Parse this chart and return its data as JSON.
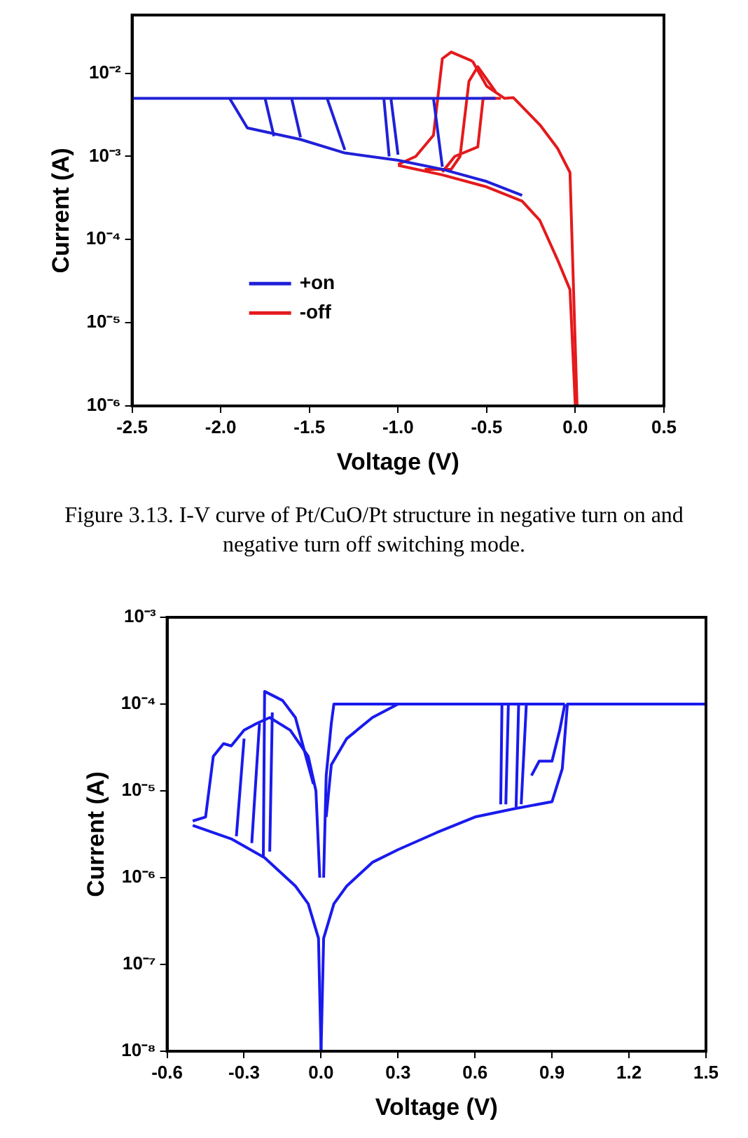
{
  "chart_data": [
    {
      "type": "line",
      "xlabel": "Voltage (V)",
      "ylabel": "Current (A)",
      "log": "y",
      "grid": false,
      "legend": "bottom left",
      "marker": "none",
      "line_style": "solid",
      "xlim": [
        -2.5,
        0.5
      ],
      "xticks": [
        -2.5,
        {
          "value": -2,
          "label": "-2.0"
        },
        -1.5,
        {
          "value": -1,
          "label": "-1.0"
        },
        -0.5,
        {
          "value": 0,
          "label": "0.0"
        },
        0.5
      ],
      "ylim": [
        1e-06,
        0.05
      ],
      "yticks": [
        {
          "value": 1e-06,
          "label": "10⁻⁶"
        },
        {
          "value": 1e-05,
          "label": "10⁻⁵"
        },
        {
          "value": 0.0001,
          "label": "10⁻⁴"
        },
        {
          "value": 0.001,
          "label": "10⁻³"
        },
        {
          "value": 0.01,
          "label": "10⁻²"
        }
      ],
      "annotations": [
        "Figure 3.13. I-V curve of Pt/CuO/Pt structure in negative turn on and negative turn off switching mode."
      ],
      "series": [
        {
          "name": "+on",
          "color": "#2020d8",
          "x": [
            -2.5,
            -0.45
          ],
          "values": [
            0.005,
            0.005
          ]
        },
        {
          "color": "#2020d8",
          "x": [
            -1.95,
            -1.85,
            -1.55,
            -1.3,
            -1.0,
            -0.75,
            -0.5,
            -0.3
          ],
          "values": [
            0.005,
            0.0022,
            0.0016,
            0.0011,
            0.0009,
            0.0007,
            0.0005,
            0.00034
          ]
        },
        {
          "color": "#2020d8",
          "x": [
            -1.75,
            -1.7,
            null,
            -1.6,
            -1.55,
            null,
            -1.4,
            -1.3,
            null,
            -1.08,
            -1.05,
            null,
            -1.04,
            -1.0,
            null,
            -0.8,
            -0.75
          ],
          "values": [
            0.005,
            0.00175,
            null,
            0.005,
            0.0017,
            null,
            0.005,
            0.0012,
            null,
            0.005,
            0.001,
            null,
            0.005,
            0.00105,
            null,
            0.005,
            0.00075
          ]
        },
        {
          "name": "-off",
          "color": "#e41a1c",
          "x": [
            -1.0,
            -0.75,
            -0.5,
            -0.3,
            -0.2,
            -0.1,
            -0.03,
            0
          ],
          "values": [
            0.00078,
            0.0006,
            0.00043,
            0.00029,
            0.00017,
            5.7e-05,
            2.5e-05,
            1e-06
          ]
        },
        {
          "color": "#e41a1c",
          "x": [
            -0.58,
            -0.5,
            -0.4,
            -0.35,
            -0.2,
            -0.1,
            -0.03,
            0.01
          ],
          "values": [
            0.014,
            0.007,
            0.005,
            0.0051,
            0.0024,
            0.00125,
            0.00064,
            1e-06
          ]
        },
        {
          "color": "#e41a1c",
          "x": [
            -1.0,
            -0.9,
            -0.8,
            -0.75,
            -0.7,
            -0.58
          ],
          "values": [
            0.0008,
            0.001,
            0.0018,
            0.015,
            0.018,
            0.014
          ]
        },
        {
          "color": "#e41a1c",
          "x": [
            -0.85,
            -0.7,
            -0.65,
            -0.6,
            -0.55,
            -0.45
          ],
          "values": [
            0.0007,
            0.0007,
            0.001,
            0.008,
            0.012,
            0.006
          ]
        },
        {
          "color": "#e41a1c",
          "x": [
            -0.75,
            -0.68,
            -0.55,
            -0.52,
            -0.42
          ],
          "values": [
            0.00065,
            0.001,
            0.0013,
            0.005,
            0.005
          ]
        }
      ]
    },
    {
      "type": "line",
      "xlabel": "Voltage (V)",
      "ylabel": "Current (A)",
      "log": "y",
      "grid": false,
      "legend": false,
      "marker": "none",
      "line_style": "solid",
      "xlim": [
        -0.6,
        1.5
      ],
      "xticks": [
        -0.6,
        -0.3,
        {
          "value": 0,
          "label": "0.0"
        },
        0.3,
        0.6,
        0.9,
        1.2,
        1.5
      ],
      "ylim": [
        1e-08,
        0.001
      ],
      "yticks": [
        {
          "value": 1e-08,
          "label": "10⁻⁸"
        },
        {
          "value": 1e-07,
          "label": "10⁻⁷"
        },
        {
          "value": 1e-06,
          "label": "10⁻⁶"
        },
        {
          "value": 1e-05,
          "label": "10⁻⁵"
        },
        {
          "value": 0.0001,
          "label": "10⁻⁴"
        },
        {
          "value": 0.001,
          "label": "10⁻³"
        }
      ],
      "series": [
        {
          "color": "#1a1aee",
          "x": [
            0,
            0.01,
            0.05,
            0.1,
            0.2,
            0.3,
            0.45,
            0.6,
            0.75,
            0.9,
            0.94,
            0.96,
            1.5
          ],
          "values": [
            1e-08,
            2e-07,
            5e-07,
            8e-07,
            1.5e-06,
            2.1e-06,
            3.3e-06,
            5e-06,
            6.2e-06,
            7.5e-06,
            1.8e-05,
            0.0001,
            0.0001
          ]
        },
        {
          "color": "#1a1aee",
          "x": [
            0.01,
            0.02,
            0.04,
            0.05,
            0.95
          ],
          "values": [
            1e-06,
            1.5e-05,
            6e-05,
            0.0001,
            0.0001
          ]
        },
        {
          "color": "#1a1aee",
          "x": [
            0.02,
            0.04,
            0.1,
            0.2,
            0.3
          ],
          "values": [
            5e-06,
            2e-05,
            4e-05,
            7e-05,
            0.0001
          ]
        },
        {
          "color": "#1a1aee",
          "x": [
            -0.5,
            -0.35,
            -0.22,
            -0.1,
            -0.05,
            -0.01,
            0
          ],
          "values": [
            4e-06,
            2.8e-06,
            1.7e-06,
            8e-07,
            5e-07,
            2e-07,
            1e-08
          ]
        },
        {
          "color": "#1a1aee",
          "x": [
            -0.5,
            -0.45,
            -0.42,
            -0.38,
            -0.35,
            -0.3,
            -0.25,
            -0.2,
            -0.12,
            -0.05,
            -0.02,
            -0.005
          ],
          "values": [
            4.5e-06,
            5e-06,
            2.5e-05,
            3.5e-05,
            3.3e-05,
            5e-05,
            6e-05,
            7e-05,
            5e-05,
            2.5e-05,
            1e-05,
            1e-06
          ]
        },
        {
          "color": "#1a1aee",
          "x": [
            -0.225,
            -0.22,
            -0.15,
            -0.1,
            -0.03
          ],
          "values": [
            1.7e-06,
            0.00014,
            0.00011,
            7e-05,
            1.2e-05
          ]
        },
        {
          "color": "#1a1aee",
          "x": [
            -0.33,
            -0.3,
            null,
            -0.27,
            -0.24,
            null,
            -0.2,
            -0.19
          ],
          "values": [
            3e-06,
            4e-05,
            null,
            2.5e-06,
            6e-05,
            null,
            2e-06,
            8e-05
          ]
        },
        {
          "color": "#1a1aee",
          "x": [
            0.7,
            0.705,
            null,
            0.72,
            0.73,
            null,
            0.76,
            0.77,
            null,
            0.78,
            0.8,
            null,
            0.82,
            0.85,
            0.9,
            0.93,
            0.95
          ],
          "values": [
            7e-06,
            0.0001,
            null,
            7e-06,
            0.0001,
            null,
            6.5e-06,
            0.0001,
            null,
            7e-06,
            0.0001,
            null,
            1.5e-05,
            2.2e-05,
            2.2e-05,
            5e-05,
            0.0001
          ]
        }
      ]
    }
  ]
}
